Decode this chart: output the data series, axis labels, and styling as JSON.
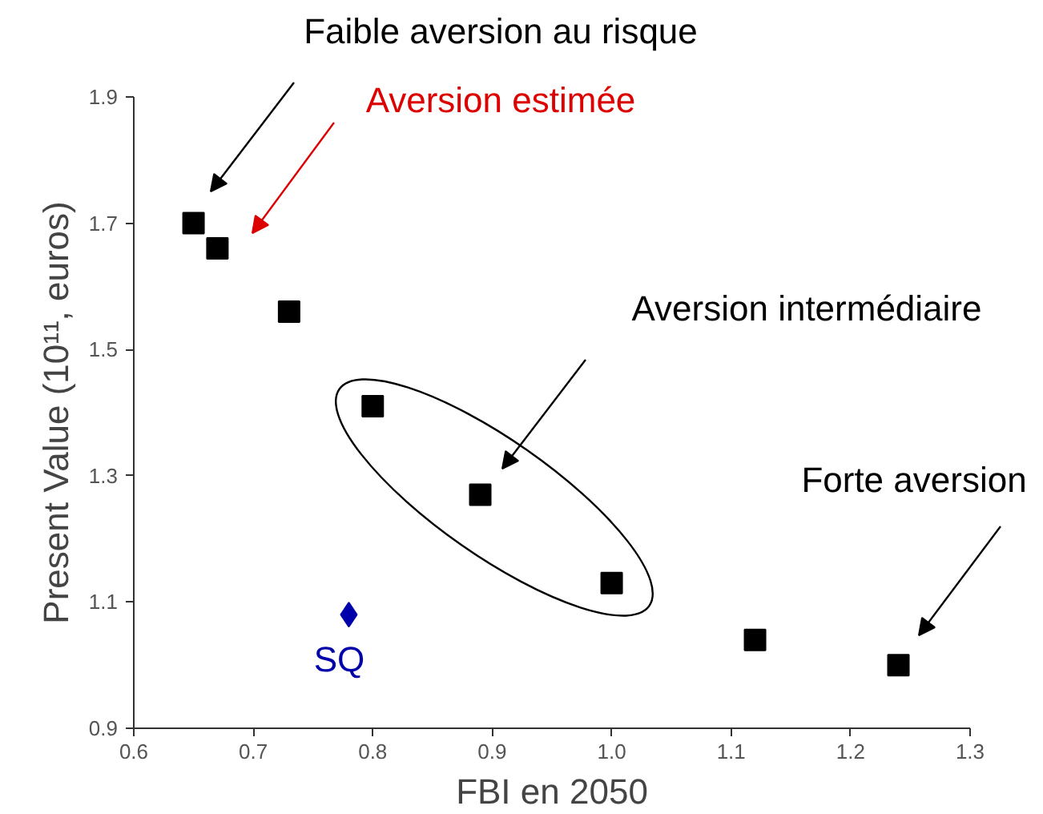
{
  "chart_data": {
    "type": "scatter",
    "xlabel": "FBI en 2050",
    "ylabel": "Present Value (10¹¹, euros)",
    "xlim": [
      0.6,
      1.3
    ],
    "xticks": [
      {
        "value": 0.6,
        "label": "0.6"
      },
      {
        "value": 0.7,
        "label": "0.7"
      },
      {
        "value": 0.8,
        "label": "0.8"
      },
      {
        "value": 0.9,
        "label": "0.9"
      },
      {
        "value": 1.0,
        "label": "1.0"
      },
      {
        "value": 1.1,
        "label": "1.1"
      },
      {
        "value": 1.2,
        "label": "1.2"
      },
      {
        "value": 1.3,
        "label": "1.3"
      }
    ],
    "ylim": [
      0.9,
      1.9
    ],
    "yticks": [
      {
        "value": 0.9,
        "label": "0.9"
      },
      {
        "value": 1.1,
        "label": "1.1"
      },
      {
        "value": 1.3,
        "label": "1.3"
      },
      {
        "value": 1.5,
        "label": "1.5"
      },
      {
        "value": 1.7,
        "label": "1.7"
      },
      {
        "value": 1.9,
        "label": "1.9"
      }
    ],
    "grid": false,
    "legend": false,
    "series": [
      {
        "color": "#000000",
        "marker": "square",
        "x": [
          0.65,
          0.67,
          0.73,
          0.8,
          0.89,
          1.0,
          1.12,
          1.24
        ],
        "values": [
          1.7,
          1.66,
          1.56,
          1.41,
          1.27,
          1.13,
          1.04,
          1.0
        ]
      },
      {
        "name": "SQ",
        "color": "#0000aa",
        "marker": "diamond",
        "x": [
          0.78
        ],
        "values": [
          1.08
        ]
      }
    ],
    "annotations": [
      "Faible aversion au risque",
      "Aversion estimée",
      "Aversion intermédiaire",
      "Forte aversion"
    ]
  }
}
